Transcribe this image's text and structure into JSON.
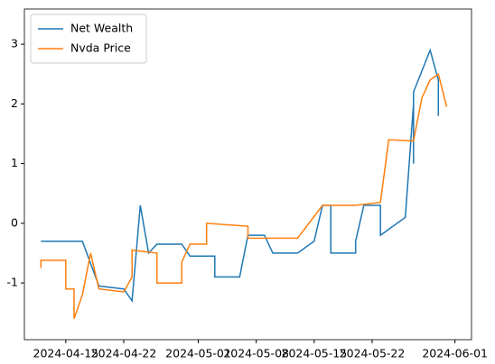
{
  "chart_data": {
    "type": "line",
    "xlim": [
      "2024-04-10",
      "2024-06-03"
    ],
    "xticks": [
      "2024-04-15",
      "2024-04-22",
      "2024-05-01",
      "2024-05-08",
      "2024-05-15",
      "2024-05-22",
      "2024-06-01"
    ],
    "ylim": [
      -1.95,
      3.59
    ],
    "yticks": [
      -1,
      0,
      1,
      2,
      3
    ],
    "legend": "upper left",
    "series": [
      {
        "name": "Net Wealth",
        "color": "#1f77b4",
        "x": [
          "2024-04-12",
          "2024-04-17",
          "2024-04-19",
          "2024-04-22",
          "2024-04-23",
          "2024-04-23",
          "2024-04-24",
          "2024-04-25",
          "2024-04-26",
          "2024-04-29",
          "2024-04-30",
          "2024-05-03",
          "2024-05-03",
          "2024-05-06",
          "2024-05-07",
          "2024-05-09",
          "2024-05-10",
          "2024-05-13",
          "2024-05-15",
          "2024-05-16",
          "2024-05-17",
          "2024-05-17",
          "2024-05-20",
          "2024-05-20",
          "2024-05-21",
          "2024-05-23",
          "2024-05-23",
          "2024-05-26",
          "2024-05-27",
          "2024-05-27",
          "2024-05-27",
          "2024-05-29",
          "2024-05-30",
          "2024-05-30"
        ],
        "values": [
          -0.3,
          -0.3,
          -1.05,
          -1.1,
          -1.3,
          -1.3,
          0.3,
          -0.5,
          -0.35,
          -0.35,
          -0.55,
          -0.55,
          -0.9,
          -0.9,
          -0.2,
          -0.2,
          -0.5,
          -0.5,
          -0.3,
          0.3,
          0.3,
          -0.5,
          -0.5,
          -0.3,
          0.3,
          0.3,
          -0.2,
          0.1,
          2.0,
          1.0,
          2.2,
          2.9,
          2.4,
          1.8
        ]
      },
      {
        "name": "Nvda Price",
        "color": "#ff7f0e",
        "x": [
          "2024-04-12",
          "2024-04-12",
          "2024-04-15",
          "2024-04-15",
          "2024-04-16",
          "2024-04-16",
          "2024-04-17",
          "2024-04-18",
          "2024-04-19",
          "2024-04-22",
          "2024-04-23",
          "2024-04-23",
          "2024-04-26",
          "2024-04-26",
          "2024-04-29",
          "2024-04-29",
          "2024-04-30",
          "2024-05-02",
          "2024-05-02",
          "2024-05-07",
          "2024-05-07",
          "2024-05-13",
          "2024-05-16",
          "2024-05-20",
          "2024-05-23",
          "2024-05-24",
          "2024-05-27",
          "2024-05-28",
          "2024-05-29",
          "2024-05-30",
          "2024-05-31"
        ],
        "values": [
          -0.75,
          -0.62,
          -0.62,
          -1.1,
          -1.1,
          -1.6,
          -1.2,
          -0.5,
          -1.1,
          -1.15,
          -0.9,
          -0.45,
          -0.5,
          -1.0,
          -1.0,
          -0.65,
          -0.35,
          -0.35,
          0.0,
          -0.05,
          -0.25,
          -0.25,
          0.3,
          0.3,
          0.35,
          1.4,
          1.38,
          2.1,
          2.4,
          2.5,
          1.95
        ]
      }
    ]
  }
}
